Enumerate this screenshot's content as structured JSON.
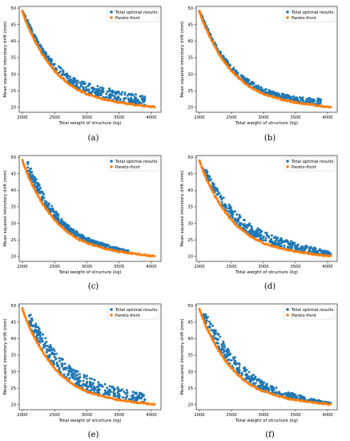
{
  "legend": {
    "total": "Total optimal results",
    "pareto": "Pareto-front"
  },
  "colors": {
    "total": "#1f77b4",
    "pareto": "#ff7f0e"
  },
  "chart_data": [
    {
      "type": "scatter",
      "caption": "(a)",
      "xlabel": "Total weight of structure (kg)",
      "ylabel": "Mean squared interstory drift (mm)",
      "xlim": [
        1950,
        4150
      ],
      "ylim": [
        18.5,
        50.5
      ],
      "xticks": [
        2000,
        2500,
        3000,
        3500,
        4000
      ],
      "yticks": [
        20,
        25,
        30,
        35,
        40,
        45,
        50
      ],
      "legend_position": "top-right",
      "series": [
        {
          "name": "Total optimal results",
          "x": [
            2000,
            2050,
            2100,
            2200,
            2300,
            2400,
            2500,
            2600,
            2700,
            2800,
            2900,
            3000,
            3200,
            3400,
            3600,
            3800,
            3900
          ],
          "y": [
            49,
            47.8,
            45.5,
            41.5,
            38.2,
            35.5,
            33.5,
            31.8,
            30.2,
            29.2,
            28.3,
            27.5,
            26.3,
            25.4,
            24.6,
            23.8,
            23.2
          ]
        },
        {
          "name": "Pareto-front",
          "x": [
            2000,
            2050,
            2100,
            2200,
            2300,
            2400,
            2500,
            2600,
            2700,
            2800,
            2900,
            3000,
            3200,
            3400,
            3600,
            3800,
            4050
          ],
          "y": [
            49,
            46.2,
            43.8,
            39.8,
            36.3,
            33.5,
            31,
            29,
            27.4,
            26,
            24.9,
            24,
            22.8,
            21.8,
            21.2,
            20.6,
            20.1
          ]
        }
      ]
    },
    {
      "type": "scatter",
      "caption": "(b)",
      "xlabel": "Total weight of structure (kg)",
      "ylabel": "Mean squared interstory drift (mm)",
      "xlim": [
        1950,
        4150
      ],
      "ylim": [
        18.5,
        50.5
      ],
      "xticks": [
        2000,
        2500,
        3000,
        3500,
        4000
      ],
      "yticks": [
        20,
        25,
        30,
        35,
        40,
        45,
        50
      ],
      "legend_position": "top-right",
      "series": [
        {
          "name": "Total optimal results",
          "x": [
            2000,
            2050,
            2100,
            2200,
            2300,
            2400,
            2500,
            2600,
            2700,
            2800,
            2900,
            3000,
            3200,
            3400,
            3600,
            3900
          ],
          "y": [
            49,
            47.5,
            45,
            41,
            37.6,
            34.9,
            32.7,
            30.8,
            29.2,
            27.9,
            26.8,
            25.8,
            24.5,
            23.6,
            23,
            22.6
          ]
        },
        {
          "name": "Pareto-front",
          "x": [
            2000,
            2050,
            2100,
            2200,
            2300,
            2400,
            2500,
            2600,
            2700,
            2800,
            2900,
            3000,
            3200,
            3400,
            3600,
            3800,
            4050
          ],
          "y": [
            49,
            46.2,
            43.8,
            39.8,
            36.3,
            33.5,
            31,
            29,
            27.4,
            26,
            24.9,
            24,
            22.8,
            21.8,
            21.2,
            20.6,
            20.1
          ]
        }
      ]
    },
    {
      "type": "scatter",
      "caption": "(c)",
      "xlabel": "Total weight of structure (kg)",
      "ylabel": "Mean squared interstory drift (mm)",
      "xlim": [
        1950,
        4150
      ],
      "ylim": [
        18.5,
        50.5
      ],
      "xticks": [
        2000,
        2500,
        3000,
        3500,
        4000
      ],
      "yticks": [
        20,
        25,
        30,
        35,
        40,
        45,
        50
      ],
      "legend_position": "top-right",
      "series": [
        {
          "name": "Total optimal results",
          "x": [
            2080,
            2100,
            2200,
            2300,
            2400,
            2500,
            2600,
            2700,
            2800,
            2900,
            3000,
            3100,
            3200,
            3300,
            3400,
            3500,
            3650
          ],
          "y": [
            49.5,
            48.4,
            44,
            40.2,
            36.8,
            34,
            31.6,
            29.7,
            28.1,
            26.8,
            25.8,
            25,
            24.3,
            23.6,
            23,
            22.5,
            21.8
          ]
        },
        {
          "name": "Pareto-front",
          "x": [
            2000,
            2050,
            2100,
            2200,
            2300,
            2400,
            2500,
            2600,
            2700,
            2800,
            2900,
            3000,
            3200,
            3400,
            3600,
            3800,
            4050
          ],
          "y": [
            49,
            46.2,
            43.8,
            39.8,
            36.3,
            33.5,
            31,
            29,
            27.4,
            26,
            24.9,
            24,
            22.8,
            21.8,
            21.2,
            20.6,
            20.1
          ]
        }
      ]
    },
    {
      "type": "scatter",
      "caption": "(d)",
      "xlabel": "Total weight of structure (kg)",
      "ylabel": "Mean squared interstory drift (mm)",
      "xlim": [
        1950,
        4150
      ],
      "ylim": [
        18.5,
        50.5
      ],
      "xticks": [
        2000,
        2500,
        3000,
        3500,
        4000
      ],
      "yticks": [
        20,
        25,
        30,
        35,
        40,
        45,
        50
      ],
      "legend_position": "top-right",
      "series": [
        {
          "name": "Total optimal results",
          "x": [
            2050,
            2100,
            2200,
            2300,
            2400,
            2500,
            2600,
            2700,
            2800,
            2900,
            3000,
            3200,
            3400,
            3600,
            3800,
            4000,
            4050
          ],
          "y": [
            47,
            46.5,
            43,
            40,
            37.2,
            35,
            33,
            31.3,
            29.8,
            28.6,
            27.6,
            26,
            24.8,
            23.6,
            22.6,
            21.6,
            21.2
          ]
        },
        {
          "name": "Pareto-front",
          "x": [
            2000,
            2050,
            2100,
            2200,
            2300,
            2400,
            2500,
            2600,
            2700,
            2800,
            2900,
            3000,
            3200,
            3400,
            3600,
            3800,
            4050
          ],
          "y": [
            49,
            46.2,
            43.8,
            39.8,
            36.3,
            33.5,
            31,
            29,
            27.4,
            26,
            24.9,
            24,
            22.8,
            21.8,
            21.2,
            20.6,
            20.1
          ]
        }
      ]
    },
    {
      "type": "scatter",
      "caption": "(e)",
      "xlabel": "Total weight of structure (kg)",
      "ylabel": "Mean squared interstory drift (mm)",
      "xlim": [
        1950,
        4150
      ],
      "ylim": [
        18.5,
        50.5
      ],
      "xticks": [
        2000,
        2500,
        3000,
        3500,
        4000
      ],
      "yticks": [
        20,
        25,
        30,
        35,
        40,
        45,
        50
      ],
      "legend_position": "top-right",
      "series": [
        {
          "name": "Total optimal results",
          "x": [
            2100,
            2150,
            2200,
            2300,
            2400,
            2500,
            2600,
            2700,
            2800,
            2900,
            3000,
            3200,
            3400,
            3600,
            3800,
            3900
          ],
          "y": [
            48,
            46.5,
            45,
            42,
            39,
            36.5,
            34.3,
            32.5,
            31,
            29.8,
            28.8,
            27,
            25.7,
            24.7,
            23.8,
            23.3
          ]
        },
        {
          "name": "Pareto-front",
          "x": [
            2000,
            2050,
            2100,
            2200,
            2300,
            2400,
            2500,
            2600,
            2700,
            2800,
            2900,
            3000,
            3200,
            3400,
            3600,
            3800,
            4050
          ],
          "y": [
            49,
            46.2,
            43.8,
            39.8,
            36.3,
            33.5,
            31,
            29,
            27.4,
            26,
            24.9,
            24,
            22.8,
            21.8,
            21.2,
            20.6,
            20.1
          ]
        }
      ]
    },
    {
      "type": "scatter",
      "caption": "(f)",
      "xlabel": "Total weight of structure (kg)",
      "ylabel": "Mean squared interstory drift (mm)",
      "xlim": [
        1950,
        4150
      ],
      "ylim": [
        18.5,
        50.5
      ],
      "xticks": [
        2000,
        2500,
        3000,
        3500,
        4000
      ],
      "yticks": [
        20,
        25,
        30,
        35,
        40,
        45,
        50
      ],
      "legend_position": "top-right",
      "series": [
        {
          "name": "Total optimal results",
          "x": [
            2050,
            2100,
            2200,
            2300,
            2400,
            2500,
            2600,
            2700,
            2800,
            2900,
            3000,
            3200,
            3400,
            3600,
            3800,
            4050
          ],
          "y": [
            48.5,
            47.5,
            44.5,
            41.5,
            38.3,
            35.7,
            33.4,
            31.4,
            29.7,
            28.2,
            27,
            25.2,
            23.8,
            22.6,
            21.6,
            20.6
          ]
        },
        {
          "name": "Pareto-front",
          "x": [
            2000,
            2050,
            2100,
            2200,
            2300,
            2400,
            2500,
            2600,
            2700,
            2800,
            2900,
            3000,
            3200,
            3400,
            3600,
            3800,
            4050
          ],
          "y": [
            49,
            46.2,
            43.8,
            39.8,
            36.3,
            33.5,
            31,
            29,
            27.4,
            26,
            24.9,
            24,
            22.8,
            21.8,
            21.2,
            20.6,
            20.1
          ]
        }
      ]
    }
  ]
}
